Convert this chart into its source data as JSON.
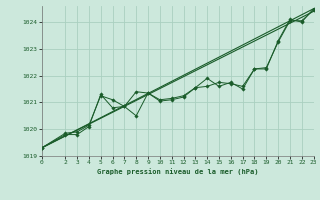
{
  "title": "Graphe pression niveau de la mer (hPa)",
  "bg_color": "#cce8dc",
  "grid_color": "#aad0c0",
  "line_color": "#1a5c2a",
  "xlim": [
    0,
    23
  ],
  "ylim": [
    1019.0,
    1024.6
  ],
  "xticks": [
    0,
    2,
    3,
    4,
    5,
    6,
    7,
    8,
    9,
    10,
    11,
    12,
    13,
    14,
    15,
    16,
    17,
    18,
    19,
    20,
    21,
    22,
    23
  ],
  "yticks": [
    1019,
    1020,
    1021,
    1022,
    1023,
    1024
  ],
  "series1_x": [
    0,
    2,
    3,
    4,
    5,
    6,
    7,
    8,
    9,
    10,
    11,
    12,
    13,
    14,
    15,
    16,
    17,
    18,
    19,
    20,
    21,
    22,
    23
  ],
  "series1_y": [
    1019.3,
    1019.8,
    1019.8,
    1020.1,
    1021.3,
    1020.8,
    1020.85,
    1020.5,
    1021.35,
    1021.05,
    1021.1,
    1021.2,
    1021.55,
    1021.9,
    1021.6,
    1021.75,
    1021.5,
    1022.25,
    1022.25,
    1023.3,
    1024.1,
    1024.0,
    1024.5
  ],
  "series2_x": [
    0,
    2,
    3,
    4,
    5,
    6,
    7,
    8,
    9,
    10,
    11,
    12,
    13,
    14,
    15,
    16,
    17,
    18,
    19,
    20,
    21,
    22,
    23
  ],
  "series2_y": [
    1019.3,
    1019.85,
    1019.9,
    1020.15,
    1021.25,
    1021.1,
    1020.85,
    1021.4,
    1021.35,
    1021.1,
    1021.15,
    1021.25,
    1021.55,
    1021.6,
    1021.75,
    1021.7,
    1021.6,
    1022.25,
    1022.3,
    1023.25,
    1024.05,
    1024.05,
    1024.45
  ],
  "trend1_x": [
    0,
    23
  ],
  "trend1_y": [
    1019.3,
    1024.5
  ],
  "trend2_x": [
    0,
    23
  ],
  "trend2_y": [
    1019.3,
    1024.4
  ]
}
